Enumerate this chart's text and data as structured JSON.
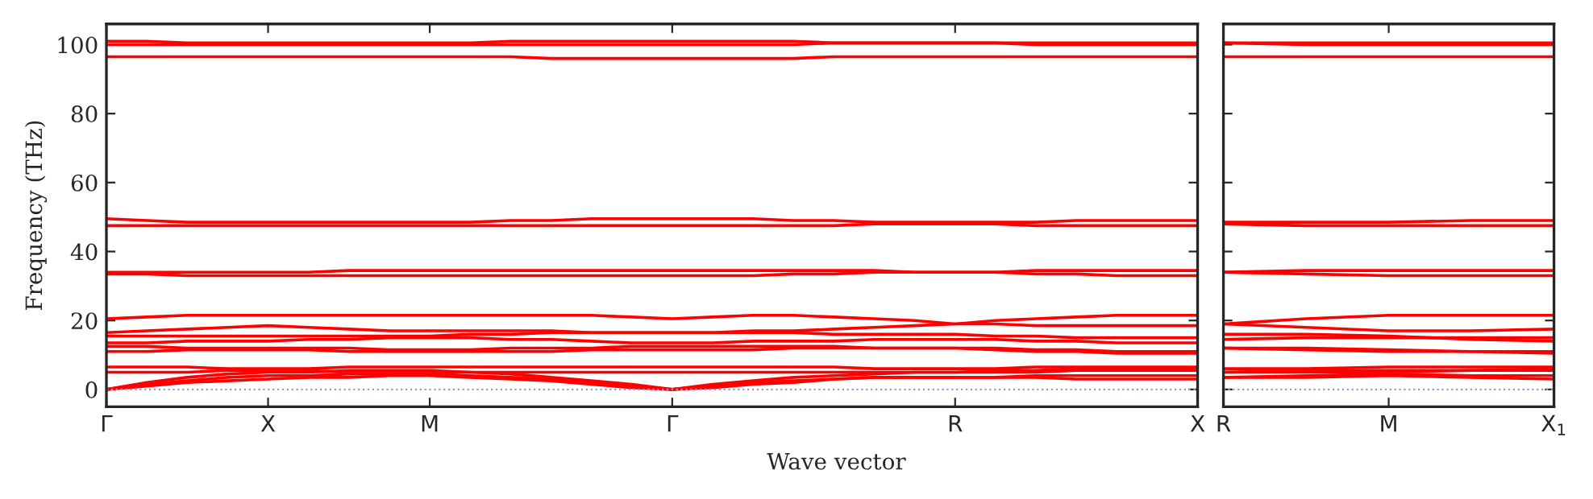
{
  "chart_data": [
    {
      "type": "line",
      "ylabel": "Frequency (THz)",
      "xlabel": "Wave vector",
      "categories": [
        "Γ",
        null,
        null,
        null,
        "X",
        null,
        null,
        null,
        "M",
        null,
        null,
        null,
        null,
        null,
        "Γ",
        null,
        null,
        null,
        null,
        null,
        null,
        "R",
        null,
        null,
        null,
        null,
        null,
        "X"
      ],
      "ylim": [
        -5,
        106
      ],
      "yticks": [
        0,
        20,
        40,
        60,
        80,
        100
      ],
      "ref_lines": [
        {
          "axis": "y",
          "value": 0,
          "color": "#9999cc",
          "line_style": "dotted"
        }
      ],
      "series": [
        {
          "color": "#ff0000",
          "values": [
            0,
            1,
            2,
            2.5,
            3,
            3.5,
            3.5,
            4,
            4,
            3.5,
            3,
            2.5,
            1.5,
            0.5,
            0,
            0.5,
            1.5,
            2,
            3,
            3.5,
            3.5,
            3.5,
            3.5,
            3.5,
            3,
            3,
            3,
            3
          ]
        },
        {
          "color": "#ff0000",
          "values": [
            0,
            1.5,
            2.5,
            3.5,
            4,
            4,
            4.5,
            4.5,
            4.5,
            4,
            3.5,
            3,
            2,
            1,
            0,
            1,
            2,
            2.5,
            3,
            3.5,
            3.5,
            3.5,
            3.5,
            4,
            4,
            4,
            4,
            4
          ]
        },
        {
          "color": "#ff0000",
          "values": [
            0,
            2,
            3.5,
            4.5,
            5,
            5,
            5.5,
            5.5,
            5.5,
            5,
            4.5,
            3.5,
            2.5,
            1.5,
            0,
            1.5,
            2.5,
            3.5,
            4,
            4.5,
            5,
            5,
            5,
            5,
            5.5,
            5.5,
            5.5,
            5.5
          ]
        },
        {
          "color": "#ff0000",
          "values": [
            5,
            5,
            5,
            5.5,
            5.5,
            5.5,
            5,
            5,
            5,
            5,
            5,
            5,
            5,
            5,
            5,
            5,
            5,
            5,
            5,
            5,
            5,
            5,
            5.5,
            5.5,
            6,
            6,
            6,
            6
          ]
        },
        {
          "color": "#ff0000",
          "values": [
            6.5,
            6.5,
            6.5,
            6,
            6,
            6,
            6.5,
            6.5,
            6.5,
            6.5,
            6.5,
            6.5,
            6.5,
            6.5,
            6.5,
            6.5,
            6.5,
            6.5,
            6.5,
            6,
            6,
            6,
            6,
            6.5,
            6.5,
            6.5,
            6.5,
            6.5
          ]
        },
        {
          "color": "#ff0000",
          "values": [
            11,
            11,
            11.5,
            11.5,
            11.5,
            11.5,
            11,
            11,
            11,
            11,
            11,
            11,
            11.5,
            11.5,
            11.5,
            11.5,
            11.5,
            12,
            12,
            12,
            12,
            12,
            11.5,
            11,
            11,
            10.5,
            10.5,
            10.5
          ]
        },
        {
          "color": "#ff0000",
          "values": [
            12.5,
            12.5,
            12,
            12,
            12,
            12,
            12,
            11.5,
            11.5,
            11.5,
            12,
            12,
            12,
            12.5,
            12.5,
            12.5,
            12.5,
            12.5,
            12.5,
            12,
            12,
            12,
            12,
            11.5,
            11.5,
            11,
            11,
            11
          ]
        },
        {
          "color": "#ff0000",
          "values": [
            13.5,
            13.5,
            14,
            14,
            14,
            14.5,
            14.5,
            15,
            15,
            15,
            14.5,
            14.5,
            14,
            13.5,
            13.5,
            13.5,
            14,
            14,
            14,
            14.5,
            14.5,
            14.5,
            14.5,
            14,
            14,
            13.5,
            13.5,
            13.5
          ]
        },
        {
          "color": "#ff0000",
          "values": [
            15.5,
            15.5,
            15.5,
            15.5,
            15.5,
            15.5,
            15.5,
            15.5,
            15.5,
            16,
            16,
            16.5,
            16.5,
            16.5,
            16.5,
            16.5,
            16.5,
            16.5,
            16,
            16,
            16,
            16,
            15.5,
            15.5,
            15,
            15,
            15,
            15
          ]
        },
        {
          "color": "#ff0000",
          "values": [
            16.5,
            17,
            17.5,
            18,
            18.5,
            18,
            17.5,
            17,
            17,
            17,
            17,
            17,
            16.5,
            16.5,
            16.5,
            16.5,
            17,
            17,
            17.5,
            18,
            18.5,
            19,
            19,
            18.5,
            18.5,
            18.5,
            18.5,
            18.5
          ]
        },
        {
          "color": "#ff0000",
          "values": [
            20.5,
            21,
            21.5,
            21.5,
            21.5,
            21.5,
            21.5,
            21.5,
            21.5,
            21.5,
            21.5,
            21.5,
            21.5,
            21,
            20.5,
            21,
            21.5,
            21.5,
            21,
            20.5,
            20,
            19,
            20,
            20.5,
            21,
            21.5,
            21.5,
            21.5
          ]
        },
        {
          "color": "#ff0000",
          "values": [
            33.5,
            33.5,
            33,
            33,
            33,
            33,
            33,
            33,
            33,
            33,
            33,
            33,
            33,
            33,
            33,
            33,
            33,
            33.5,
            33.5,
            34,
            34,
            34,
            34,
            33.5,
            33.5,
            33,
            33,
            33
          ]
        },
        {
          "color": "#ff0000",
          "values": [
            34,
            34,
            34,
            34,
            34,
            34,
            34.5,
            34.5,
            34.5,
            34.5,
            34.5,
            34.5,
            34.5,
            34.5,
            34.5,
            34.5,
            34.5,
            34.5,
            34.5,
            34.5,
            34,
            34,
            34,
            34.5,
            34.5,
            34.5,
            34.5,
            34.5
          ]
        },
        {
          "color": "#ff0000",
          "values": [
            47.5,
            47.5,
            47.5,
            47.5,
            47.5,
            47.5,
            47.5,
            47.5,
            47.5,
            47.5,
            47.5,
            47.5,
            47.5,
            47.5,
            47.5,
            47.5,
            47.5,
            47.5,
            47.5,
            48,
            48,
            48,
            48,
            47.5,
            47.5,
            47.5,
            47.5,
            47.5
          ]
        },
        {
          "color": "#ff0000",
          "values": [
            49.5,
            49,
            48.5,
            48.5,
            48.5,
            48.5,
            48.5,
            48.5,
            48.5,
            48.5,
            49,
            49,
            49.5,
            49.5,
            49.5,
            49.5,
            49.5,
            49,
            49,
            48.5,
            48.5,
            48.5,
            48.5,
            48.5,
            49,
            49,
            49,
            49
          ]
        },
        {
          "color": "#ff0000",
          "values": [
            96.5,
            96.5,
            96.5,
            96.5,
            96.5,
            96.5,
            96.5,
            96.5,
            96.5,
            96.5,
            96.5,
            96,
            96,
            96,
            96,
            96,
            96,
            96,
            96.5,
            96.5,
            96.5,
            96.5,
            96.5,
            96.5,
            96.5,
            96.5,
            96.5,
            96.5
          ]
        },
        {
          "color": "#ff0000",
          "values": [
            100,
            100,
            100,
            100,
            100,
            100,
            100,
            100,
            100,
            100,
            100,
            100,
            100,
            100,
            100,
            100,
            100,
            100,
            100.5,
            100.5,
            100.5,
            100.5,
            100.5,
            100,
            100,
            100,
            100,
            100
          ]
        },
        {
          "color": "#ff0000",
          "values": [
            101,
            101,
            100.5,
            100.5,
            100.5,
            100.5,
            100.5,
            100.5,
            100.5,
            100.5,
            101,
            101,
            101,
            101,
            101,
            101,
            101,
            101,
            100.5,
            100.5,
            100.5,
            100.5,
            100.5,
            100.5,
            100.5,
            100.5,
            100.5,
            100.5
          ]
        }
      ]
    },
    {
      "type": "line",
      "categories": [
        "R",
        null,
        "M",
        null,
        "X$_{1}$"
      ],
      "ylim": [
        -5,
        106
      ],
      "yticks": [
        0,
        20,
        40,
        60,
        80,
        100
      ],
      "tick_labels": "x",
      "ref_lines": [
        {
          "axis": "y",
          "value": 0,
          "color": "#9999cc",
          "line_style": "dotted"
        }
      ],
      "series": [
        {
          "color": "#ff0000",
          "values": [
            3.5,
            3.5,
            4,
            3.5,
            3
          ]
        },
        {
          "color": "#ff0000",
          "values": [
            3.5,
            4,
            4.5,
            4,
            4
          ]
        },
        {
          "color": "#ff0000",
          "values": [
            5,
            5.5,
            5.5,
            5.5,
            5.5
          ]
        },
        {
          "color": "#ff0000",
          "values": [
            5,
            5,
            5,
            5.5,
            6
          ]
        },
        {
          "color": "#ff0000",
          "values": [
            6,
            6,
            6.5,
            6.5,
            6.5
          ]
        },
        {
          "color": "#ff0000",
          "values": [
            12,
            11.5,
            11,
            11,
            11
          ]
        },
        {
          "color": "#ff0000",
          "values": [
            12,
            12,
            11.5,
            11,
            10.5
          ]
        },
        {
          "color": "#ff0000",
          "values": [
            14.5,
            15,
            15,
            15,
            15
          ]
        },
        {
          "color": "#ff0000",
          "values": [
            16,
            16,
            15.5,
            14.5,
            14
          ]
        },
        {
          "color": "#ff0000",
          "values": [
            19,
            18,
            17,
            17,
            17.5
          ]
        },
        {
          "color": "#ff0000",
          "values": [
            19,
            20.5,
            21.5,
            21.5,
            21.5
          ]
        },
        {
          "color": "#ff0000",
          "values": [
            34,
            33.5,
            33,
            33,
            33
          ]
        },
        {
          "color": "#ff0000",
          "values": [
            34,
            34.5,
            34.5,
            34.5,
            34.5
          ]
        },
        {
          "color": "#ff0000",
          "values": [
            48,
            47.5,
            47.5,
            47.5,
            47.5
          ]
        },
        {
          "color": "#ff0000",
          "values": [
            48.5,
            48.5,
            48.5,
            49,
            49
          ]
        },
        {
          "color": "#ff0000",
          "values": [
            96.5,
            96.5,
            96.5,
            96.5,
            96.5
          ]
        },
        {
          "color": "#ff0000",
          "values": [
            100.5,
            100,
            100,
            100,
            100
          ]
        },
        {
          "color": "#ff0000",
          "values": [
            100.5,
            100.5,
            100.5,
            100.5,
            100.5
          ]
        }
      ]
    }
  ]
}
